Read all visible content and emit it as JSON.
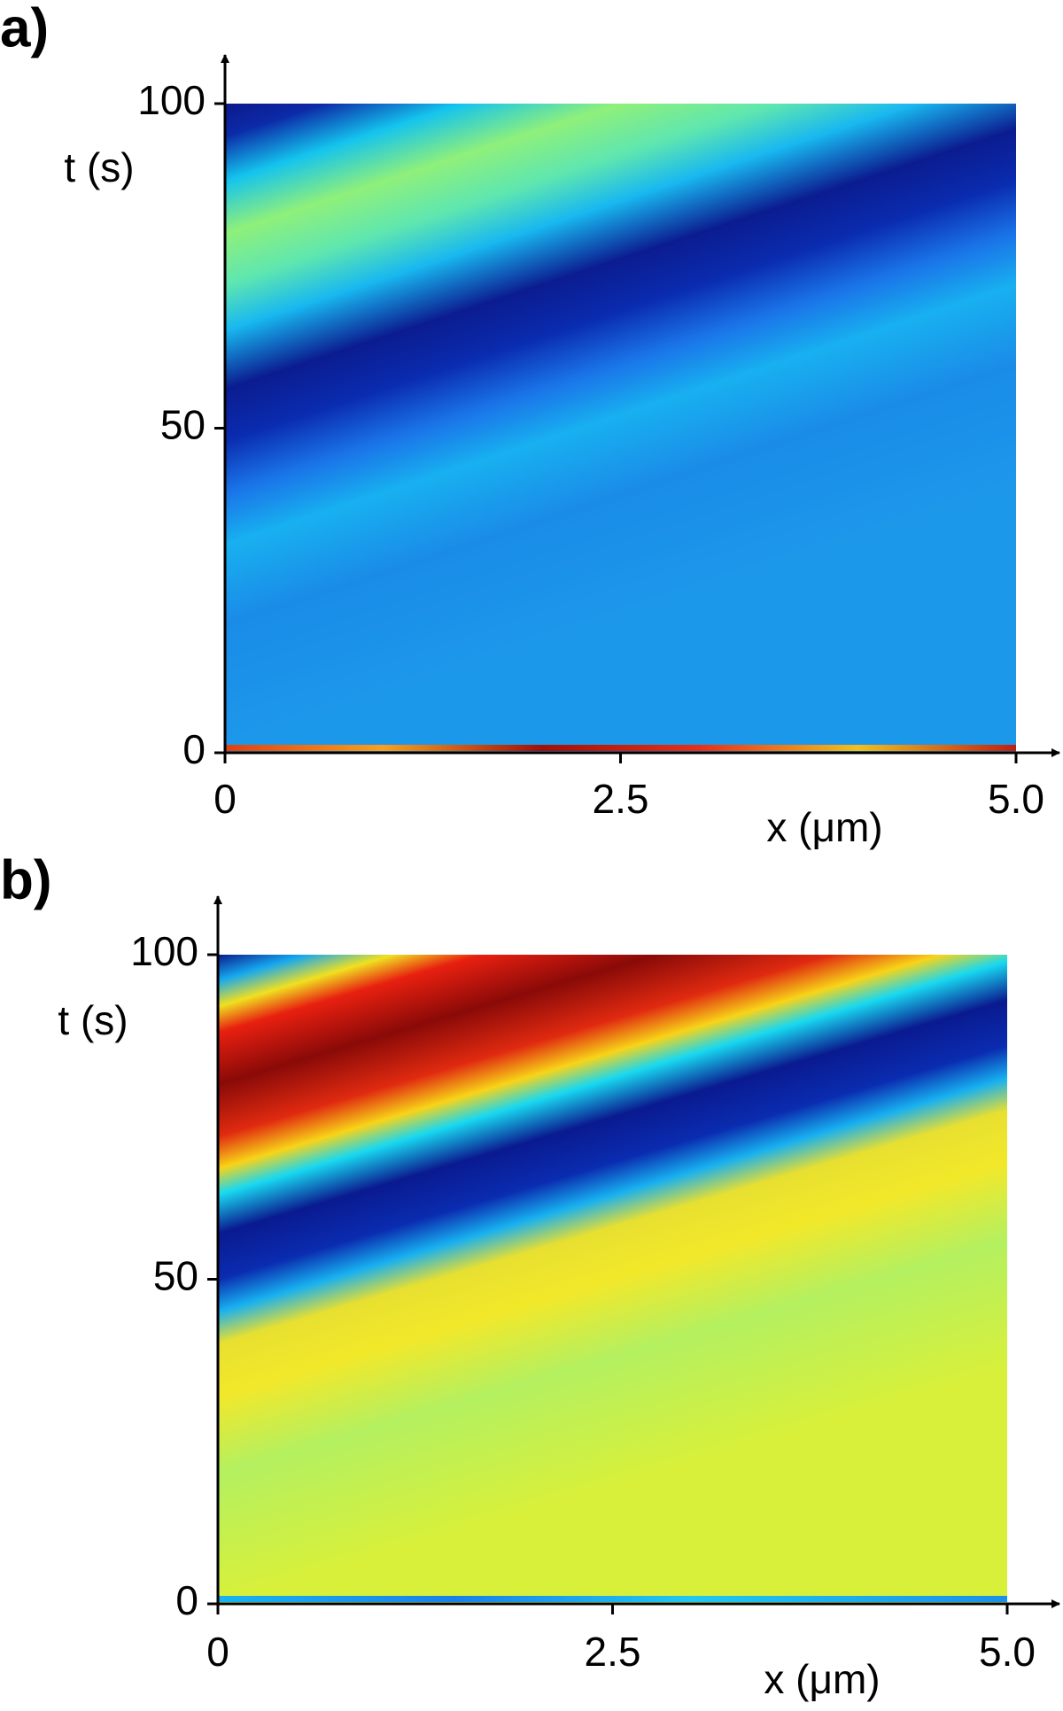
{
  "chart_data": [
    {
      "type": "heatmap",
      "panel_label": "a)",
      "xlabel": "x (μm)",
      "ylabel": "t (s)",
      "xlim": [
        0,
        5
      ],
      "ylim": [
        0,
        100
      ],
      "xticks": [
        0,
        2.5,
        {
          "value": 5,
          "label": "5.0"
        }
      ],
      "yticks": [
        0,
        50,
        100
      ]
    },
    {
      "type": "heatmap",
      "panel_label": "b)",
      "xlabel": "x (μm)",
      "ylabel": "t (s)",
      "xlim": [
        0,
        5
      ],
      "ylim": [
        0,
        100
      ],
      "xticks": [
        0,
        2.5,
        {
          "value": 5,
          "label": "5.0"
        }
      ],
      "yticks": [
        0,
        50,
        100
      ]
    }
  ]
}
